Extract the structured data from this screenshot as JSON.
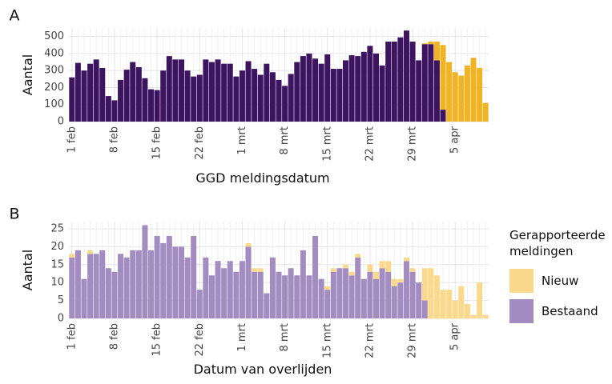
{
  "chart_data": [
    {
      "type": "stacked_bar",
      "panel_label": "A",
      "x_label": "GGD meldingsdatum",
      "y_label": "Aantal",
      "categories": [
        "1 feb",
        null,
        null,
        null,
        null,
        null,
        null,
        "8 feb",
        null,
        null,
        null,
        null,
        null,
        null,
        "15 feb",
        null,
        null,
        null,
        null,
        null,
        null,
        "22 feb",
        null,
        null,
        null,
        null,
        null,
        null,
        "1 mrt",
        null,
        null,
        null,
        null,
        null,
        null,
        "8 mrt",
        null,
        null,
        null,
        null,
        null,
        null,
        "15 mrt",
        null,
        null,
        null,
        null,
        null,
        null,
        "22 mrt",
        null,
        null,
        null,
        null,
        null,
        null,
        "29 mrt",
        null,
        null,
        null,
        null,
        null,
        null,
        "5 apr",
        null,
        null,
        null,
        null,
        null
      ],
      "series": [
        {
          "color": "#3d1460",
          "values": [
            260,
            345,
            300,
            340,
            365,
            315,
            150,
            125,
            245,
            305,
            350,
            320,
            255,
            190,
            185,
            300,
            385,
            365,
            365,
            300,
            265,
            275,
            365,
            350,
            365,
            340,
            340,
            265,
            300,
            355,
            310,
            275,
            340,
            290,
            245,
            210,
            280,
            350,
            385,
            400,
            370,
            340,
            395,
            310,
            310,
            360,
            390,
            385,
            410,
            445,
            400,
            330,
            470,
            470,
            495,
            535,
            470,
            360,
            455,
            455,
            360,
            70,
            0,
            0,
            0,
            0,
            0,
            0,
            0
          ]
        },
        {
          "color": "#f0b323",
          "values": [
            0,
            0,
            0,
            0,
            0,
            0,
            0,
            0,
            0,
            0,
            0,
            0,
            0,
            0,
            0,
            0,
            0,
            0,
            0,
            0,
            0,
            0,
            0,
            0,
            0,
            0,
            0,
            0,
            0,
            0,
            0,
            0,
            0,
            0,
            0,
            0,
            0,
            0,
            0,
            0,
            0,
            0,
            0,
            0,
            0,
            0,
            0,
            0,
            0,
            0,
            0,
            0,
            0,
            0,
            0,
            0,
            0,
            0,
            5,
            15,
            110,
            380,
            350,
            290,
            270,
            330,
            375,
            315,
            110
          ]
        }
      ],
      "ylim": [
        0,
        550
      ],
      "yticks": [
        0,
        100,
        200,
        300,
        400,
        500
      ],
      "grid": true,
      "legend": false
    },
    {
      "type": "stacked_bar",
      "panel_label": "B",
      "x_label": "Datum van overlijden",
      "y_label": "Aantal",
      "categories": [
        "1 feb",
        null,
        null,
        null,
        null,
        null,
        null,
        "8 feb",
        null,
        null,
        null,
        null,
        null,
        null,
        "15 feb",
        null,
        null,
        null,
        null,
        null,
        null,
        "22 feb",
        null,
        null,
        null,
        null,
        null,
        null,
        "1 mrt",
        null,
        null,
        null,
        null,
        null,
        null,
        "8 mrt",
        null,
        null,
        null,
        null,
        null,
        null,
        "15 mrt",
        null,
        null,
        null,
        null,
        null,
        null,
        "22 mrt",
        null,
        null,
        null,
        null,
        null,
        null,
        "29 mrt",
        null,
        null,
        null,
        null,
        null,
        null,
        "5 apr",
        null,
        null,
        null,
        null,
        null
      ],
      "series": [
        {
          "name": "Bestaand",
          "color": "#a28cc0",
          "values": [
            17,
            19,
            11,
            18,
            18,
            19,
            14,
            13,
            18,
            17,
            19,
            19,
            26,
            19,
            23,
            21,
            23,
            20,
            20,
            17,
            23,
            8,
            17,
            12,
            16,
            14,
            16,
            13,
            16,
            20,
            13,
            13,
            7,
            17,
            13,
            12,
            14,
            12,
            19,
            12,
            23,
            11,
            8,
            13,
            14,
            14,
            12,
            17,
            11,
            13,
            11,
            14,
            13,
            9,
            10,
            16,
            13,
            10,
            5,
            0,
            0,
            0,
            0,
            0,
            0,
            0,
            0,
            0,
            0
          ]
        },
        {
          "name": "Nieuw",
          "color": "#fbd98c",
          "values": [
            1,
            0,
            0,
            1,
            0,
            0,
            0,
            0,
            0,
            0,
            0,
            0,
            0,
            0,
            0,
            0,
            0,
            0,
            0,
            0,
            0,
            0,
            0,
            0,
            0,
            0,
            0,
            0,
            0,
            1,
            1,
            1,
            0,
            0,
            0,
            0,
            0,
            0,
            0,
            0,
            0,
            0,
            1,
            1,
            0,
            1,
            1,
            1,
            0,
            2,
            2,
            2,
            3,
            2,
            1,
            1,
            1,
            0,
            9,
            14,
            12,
            8,
            8,
            5,
            9,
            4,
            1,
            10,
            1
          ]
        }
      ],
      "ylim": [
        0,
        27
      ],
      "yticks": [
        0,
        5,
        10,
        15,
        20,
        25
      ],
      "grid": true,
      "legend": true,
      "legend_title": "Gerapporteerde meldingen"
    }
  ]
}
